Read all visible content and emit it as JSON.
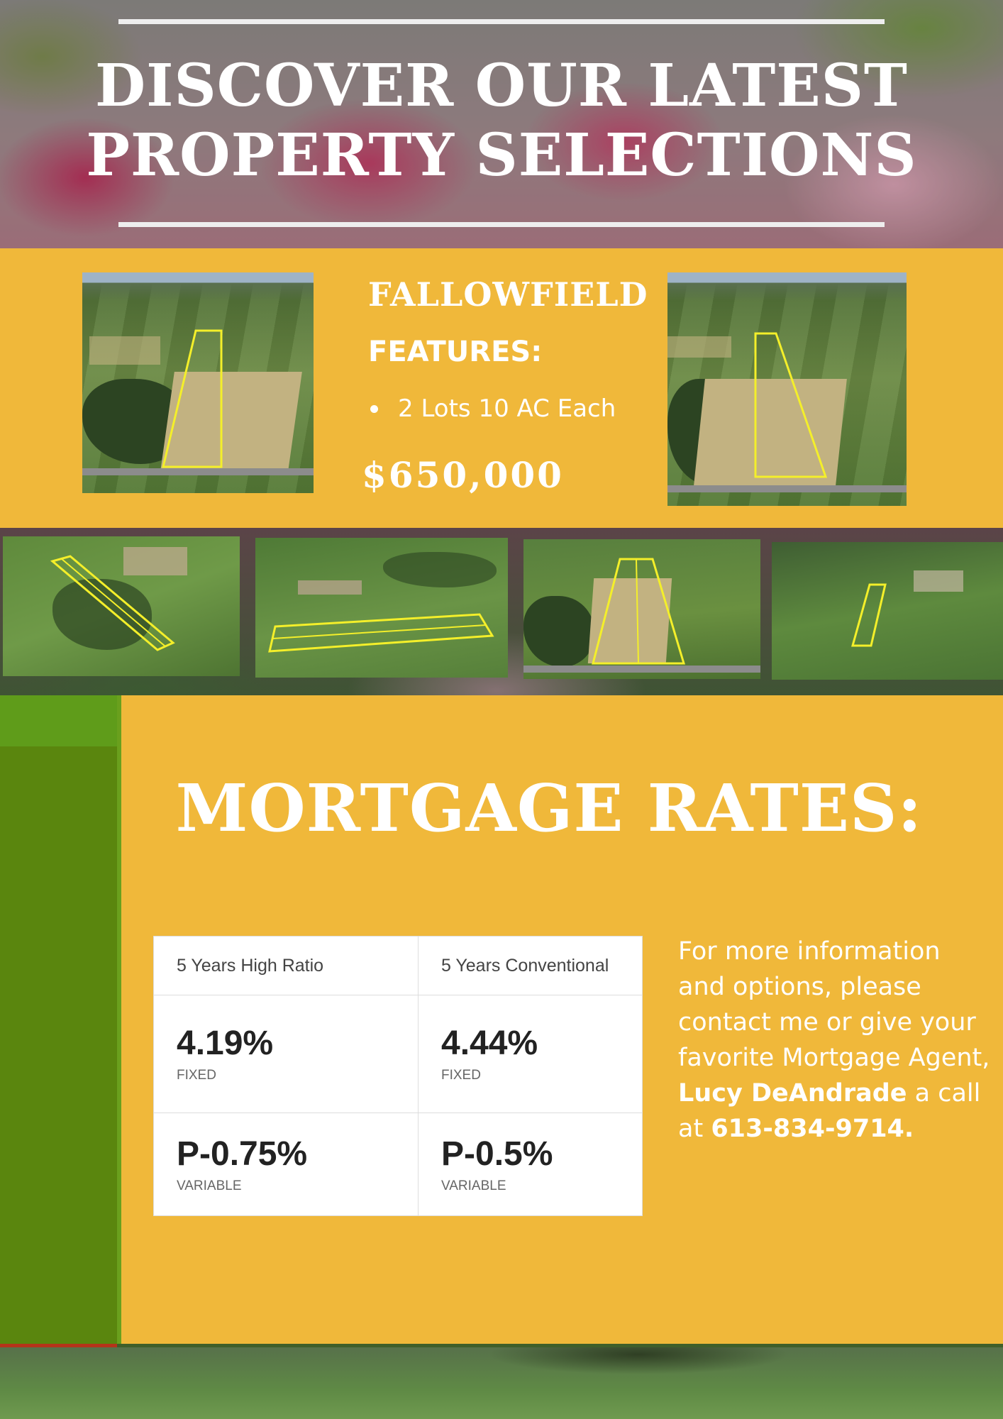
{
  "hero": {
    "title_line1": "DISCOVER OUR LATEST",
    "title_line2": "PROPERTY SELECTIONS"
  },
  "listing": {
    "name": "FALLOWFIELD",
    "features_label": "FEATURES:",
    "features": [
      "2 Lots 10 AC Each"
    ],
    "price": "$650,000"
  },
  "mortgage": {
    "title": "MORTGAGE RATES:",
    "table": {
      "headers": [
        "5 Years High Ratio",
        "5 Years Conventional"
      ],
      "rows": [
        [
          {
            "value": "4.19%",
            "kind": "FIXED"
          },
          {
            "value": "4.44%",
            "kind": "FIXED"
          }
        ],
        [
          {
            "value": "P-0.75%",
            "kind": "VARIABLE"
          },
          {
            "value": "P-0.5%",
            "kind": "VARIABLE"
          }
        ]
      ]
    },
    "contact": {
      "text_before": "For more information and options, please contact me or give your favorite Mortgage Agent,",
      "agent_name": "Lucy DeAndrade",
      "text_middle": "a call at",
      "phone": "613-834-9714."
    }
  },
  "colors": {
    "band_yellow": "#f0b83a",
    "stripe_green": "#5a860e",
    "outline_yellow": "#f4ef2a"
  }
}
